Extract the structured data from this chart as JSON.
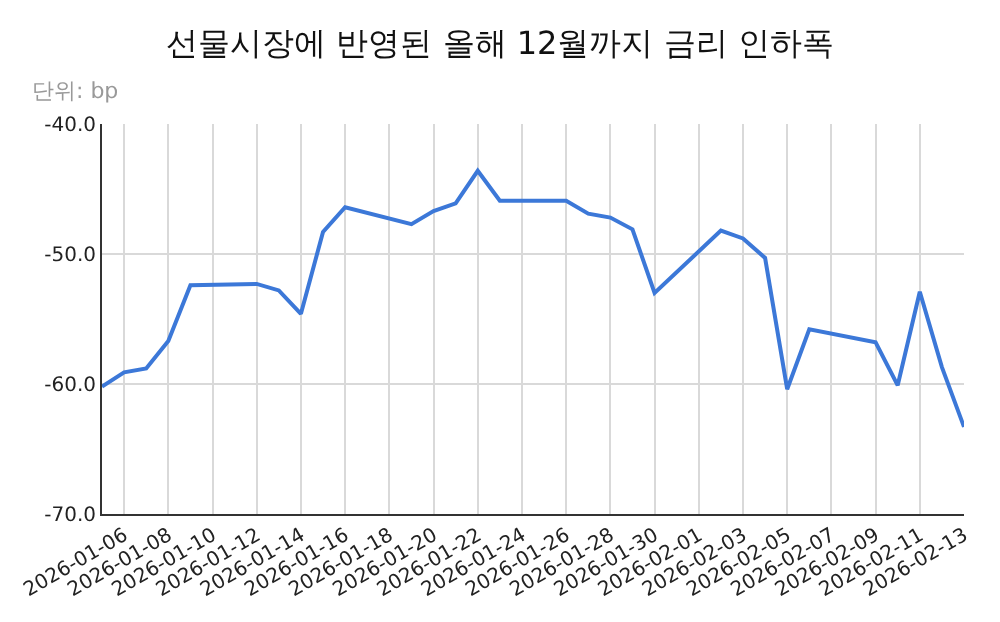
{
  "chart_data": {
    "type": "line",
    "title": "선물시장에 반영된 올해 12월까지 금리 인하폭",
    "subtitle": "단위: bp",
    "x": [
      "2026-01-05",
      "2026-01-06",
      "2026-01-07",
      "2026-01-08",
      "2026-01-09",
      "2026-01-12",
      "2026-01-13",
      "2026-01-14",
      "2026-01-15",
      "2026-01-16",
      "2026-01-19",
      "2026-01-20",
      "2026-01-21",
      "2026-01-22",
      "2026-01-23",
      "2026-01-26",
      "2026-01-27",
      "2026-01-28",
      "2026-01-29",
      "2026-01-30",
      "2026-02-02",
      "2026-02-03",
      "2026-02-04",
      "2026-02-05",
      "2026-02-06",
      "2026-02-09",
      "2026-02-10",
      "2026-02-11",
      "2026-02-12",
      "2026-02-13"
    ],
    "series": [
      {
        "color": "#3c78d8",
        "values": [
          -60.2,
          -59.1,
          -58.8,
          -56.7,
          -52.4,
          -52.3,
          -52.8,
          -54.6,
          -48.3,
          -46.4,
          -47.7,
          -46.7,
          -46.1,
          -43.6,
          -45.9,
          -45.9,
          -46.9,
          -47.2,
          -48.1,
          -53.0,
          -48.2,
          -48.8,
          -50.3,
          -60.4,
          -55.8,
          -56.8,
          -60.1,
          -52.9,
          -58.7,
          -63.3
        ]
      }
    ],
    "xlim": [
      "2026-01-05",
      "2026-02-13"
    ],
    "xticks": [
      "2026-01-06",
      "2026-01-08",
      "2026-01-10",
      "2026-01-12",
      "2026-01-14",
      "2026-01-16",
      "2026-01-18",
      "2026-01-20",
      "2026-01-22",
      "2026-01-24",
      "2026-01-26",
      "2026-01-28",
      "2026-01-30",
      "2026-02-01",
      "2026-02-03",
      "2026-02-05",
      "2026-02-07",
      "2026-02-09",
      "2026-02-11",
      "2026-02-13"
    ],
    "ylim": [
      -70,
      -40
    ],
    "yticks": [
      {
        "value": -70,
        "label": "-70.0"
      },
      {
        "value": -60,
        "label": "-60.0"
      },
      {
        "value": -50,
        "label": "-50.0"
      },
      {
        "value": -40,
        "label": "-40.0"
      }
    ],
    "grid": true,
    "legend": false,
    "marker": "none",
    "line_style": "solid"
  }
}
